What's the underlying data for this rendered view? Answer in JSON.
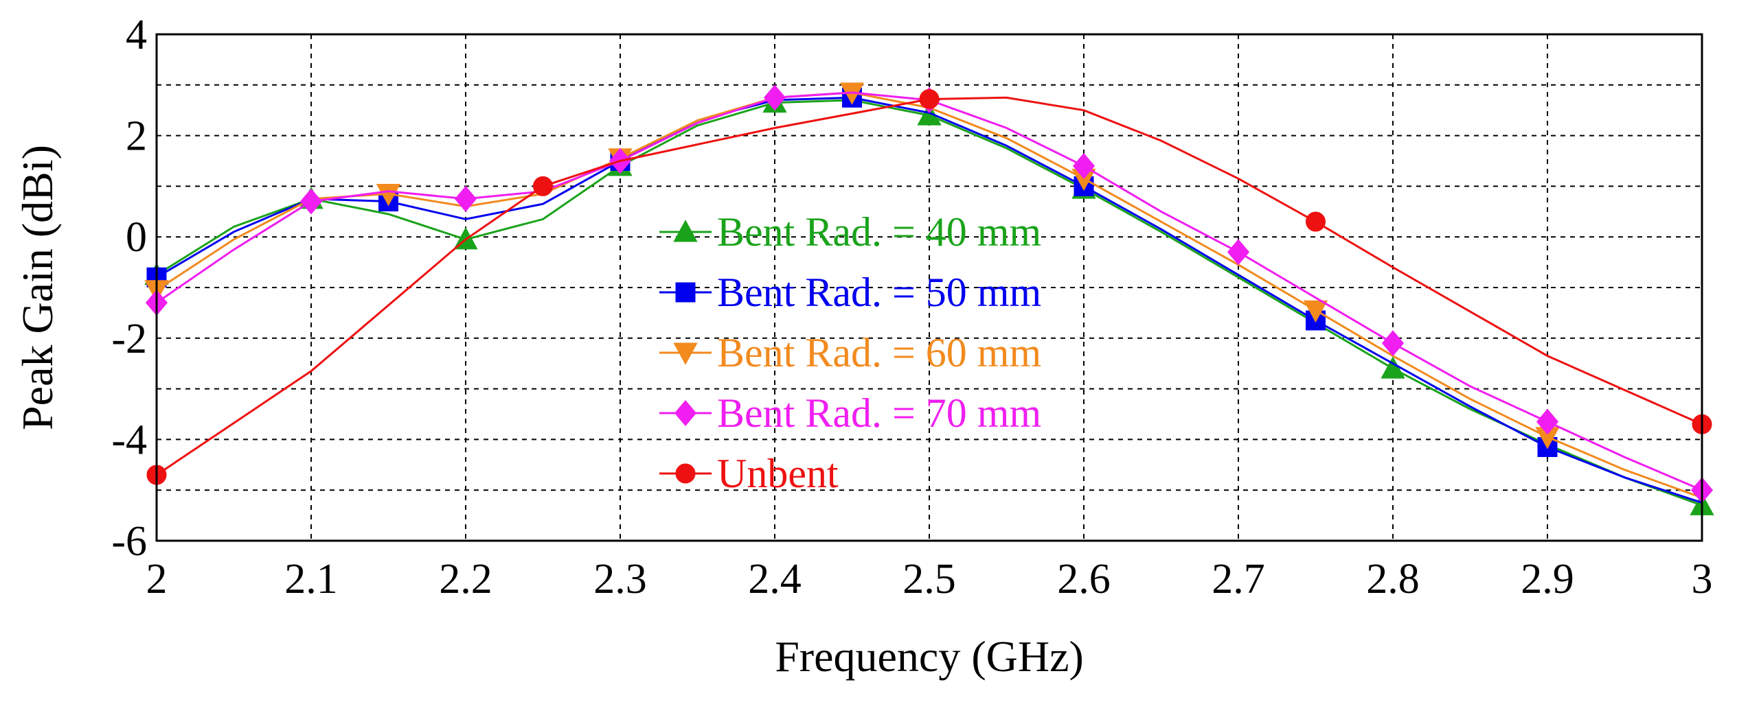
{
  "chart_data": {
    "type": "line",
    "title": "",
    "xlabel": "Frequency (GHz)",
    "ylabel": "Peak Gain (dBi)",
    "xlim": [
      2,
      3
    ],
    "ylim": [
      -6,
      4
    ],
    "x_ticks": [
      "2",
      "2.1",
      "2.2",
      "2.3",
      "2.4",
      "2.5",
      "2.6",
      "2.7",
      "2.8",
      "2.9",
      "3"
    ],
    "y_ticks": [
      "-6",
      "-4",
      "-2",
      "0",
      "2",
      "4"
    ],
    "grid": true,
    "legend_location": "center",
    "series": [
      {
        "name": "Bent Rad. = 40 mm",
        "color": "#1aa31a",
        "marker": "triangle-up",
        "x": [
          2.0,
          2.05,
          2.1,
          2.15,
          2.2,
          2.25,
          2.3,
          2.35,
          2.4,
          2.45,
          2.5,
          2.55,
          2.6,
          2.65,
          2.7,
          2.75,
          2.8,
          2.85,
          2.9,
          2.95,
          3.0
        ],
        "y": [
          -0.75,
          0.2,
          0.75,
          0.45,
          -0.05,
          0.35,
          1.4,
          2.2,
          2.65,
          2.7,
          2.4,
          1.75,
          0.95,
          0.1,
          -0.8,
          -1.7,
          -2.6,
          -3.4,
          -4.1,
          -4.75,
          -5.3
        ],
        "markers_at": [
          2.0,
          2.1,
          2.2,
          2.3,
          2.4,
          2.5,
          2.6,
          2.8,
          3.0
        ]
      },
      {
        "name": "Bent Rad. = 50 mm",
        "color": "#0000ee",
        "marker": "square",
        "x": [
          2.0,
          2.05,
          2.1,
          2.15,
          2.2,
          2.25,
          2.3,
          2.35,
          2.4,
          2.45,
          2.5,
          2.55,
          2.6,
          2.65,
          2.7,
          2.75,
          2.8,
          2.85,
          2.9,
          2.95,
          3.0
        ],
        "y": [
          -0.8,
          0.1,
          0.75,
          0.7,
          0.35,
          0.65,
          1.5,
          2.3,
          2.7,
          2.75,
          2.45,
          1.8,
          1.0,
          0.15,
          -0.75,
          -1.65,
          -2.5,
          -3.35,
          -4.15,
          -4.75,
          -5.25
        ],
        "markers_at": [
          2.0,
          2.15,
          2.3,
          2.45,
          2.6,
          2.75,
          2.9
        ]
      },
      {
        "name": "Bent Rad. = 60 mm",
        "color": "#f28a1e",
        "marker": "triangle-down",
        "x": [
          2.0,
          2.05,
          2.1,
          2.15,
          2.2,
          2.25,
          2.3,
          2.35,
          2.4,
          2.45,
          2.5,
          2.55,
          2.6,
          2.65,
          2.7,
          2.75,
          2.8,
          2.85,
          2.9,
          2.95,
          3.0
        ],
        "y": [
          -1.05,
          -0.05,
          0.75,
          0.85,
          0.6,
          0.85,
          1.55,
          2.3,
          2.75,
          2.85,
          2.55,
          1.95,
          1.15,
          0.3,
          -0.55,
          -1.45,
          -2.35,
          -3.2,
          -3.95,
          -4.6,
          -5.15
        ],
        "markers_at": [
          2.0,
          2.15,
          2.3,
          2.45,
          2.6,
          2.75,
          2.9
        ]
      },
      {
        "name": "Bent Rad. = 70 mm",
        "color": "#f01ef0",
        "marker": "diamond",
        "x": [
          2.0,
          2.05,
          2.1,
          2.15,
          2.2,
          2.25,
          2.3,
          2.35,
          2.4,
          2.45,
          2.5,
          2.55,
          2.6,
          2.65,
          2.7,
          2.75,
          2.8,
          2.85,
          2.9,
          2.95,
          3.0
        ],
        "y": [
          -1.3,
          -0.25,
          0.7,
          0.9,
          0.75,
          0.9,
          1.5,
          2.25,
          2.75,
          2.85,
          2.7,
          2.15,
          1.4,
          0.5,
          -0.3,
          -1.2,
          -2.1,
          -2.95,
          -3.65,
          -4.35,
          -5.0
        ],
        "markers_at": [
          2.0,
          2.1,
          2.2,
          2.3,
          2.4,
          2.5,
          2.6,
          2.7,
          2.8,
          2.9,
          3.0
        ]
      },
      {
        "name": "Unbent",
        "color": "#ee1111",
        "marker": "circle",
        "x": [
          2.0,
          2.1,
          2.2,
          2.25,
          2.3,
          2.4,
          2.5,
          2.55,
          2.6,
          2.65,
          2.7,
          2.75,
          2.8,
          2.9,
          3.0
        ],
        "y": [
          -4.7,
          -2.65,
          -0.05,
          1.0,
          1.5,
          2.15,
          2.72,
          2.75,
          2.5,
          1.9,
          1.15,
          0.3,
          -0.6,
          -2.35,
          -3.7
        ],
        "markers_at": [
          2.0,
          2.25,
          2.5,
          2.75,
          3.0
        ]
      }
    ]
  }
}
